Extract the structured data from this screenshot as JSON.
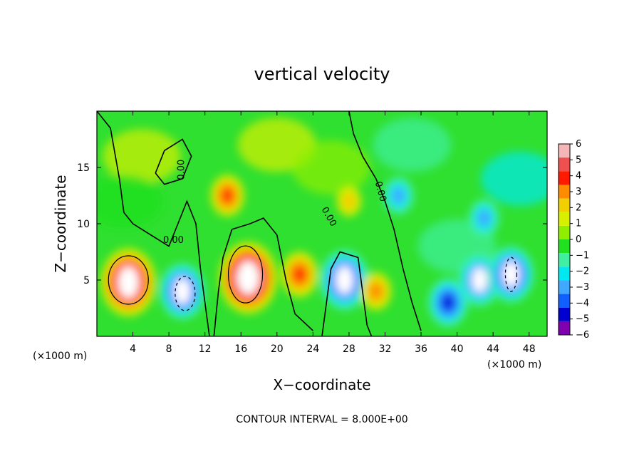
{
  "chart_data": {
    "type": "heatmap",
    "title": "vertical velocity",
    "xlabel": "X−coordinate",
    "ylabel": "Z−coordinate",
    "x_unit": "(×1000 m)",
    "z_unit": "(×1000 m)",
    "xlim": [
      0,
      50
    ],
    "ylim": [
      0,
      20
    ],
    "x_ticks": [
      4,
      8,
      12,
      16,
      20,
      24,
      28,
      32,
      36,
      40,
      44,
      48
    ],
    "y_ticks": [
      5,
      10,
      15
    ],
    "colorbar": {
      "range": [
        -6,
        6
      ],
      "ticks": [
        "6",
        "5",
        "4",
        "3",
        "2",
        "1",
        "0",
        "−1",
        "−2",
        "−3",
        "−4",
        "−5",
        "−6"
      ],
      "colors": [
        "#f4b6b6",
        "#ee5050",
        "#ff1a00",
        "#ff8c00",
        "#f0d000",
        "#d8f000",
        "#90ee00",
        "#20e020",
        "#40f0a0",
        "#00e8f0",
        "#40a8ff",
        "#1060ff",
        "#0000d0",
        "#8000b0"
      ]
    },
    "contour_labels": [
      "0.00",
      "0.00",
      "0.00",
      "0.00"
    ],
    "features": [
      {
        "x": 3.5,
        "z": 4.8,
        "w": 7.0
      },
      {
        "x": 9.5,
        "z": 4.0,
        "w": -5.5
      },
      {
        "x": 16.8,
        "z": 5.2,
        "w": 7.5
      },
      {
        "x": 14.5,
        "z": 12.5,
        "w": 3.5
      },
      {
        "x": 22.5,
        "z": 5.5,
        "w": 4.0
      },
      {
        "x": 27.5,
        "z": 5.0,
        "w": -6.0
      },
      {
        "x": 28.0,
        "z": 12.0,
        "w": 2.0
      },
      {
        "x": 33.5,
        "z": 12.5,
        "w": -3.0
      },
      {
        "x": 39.0,
        "z": 3.0,
        "w": -4.5
      },
      {
        "x": 42.5,
        "z": 5.0,
        "w": -5.0
      },
      {
        "x": 46.0,
        "z": 5.5,
        "w": -5.5
      },
      {
        "x": 43.0,
        "z": 10.5,
        "w": -3.0
      },
      {
        "x": 31.0,
        "z": 4.0,
        "w": 3.0
      }
    ],
    "contour_interval_text": "CONTOUR INTERVAL = 8.000E+00"
  }
}
